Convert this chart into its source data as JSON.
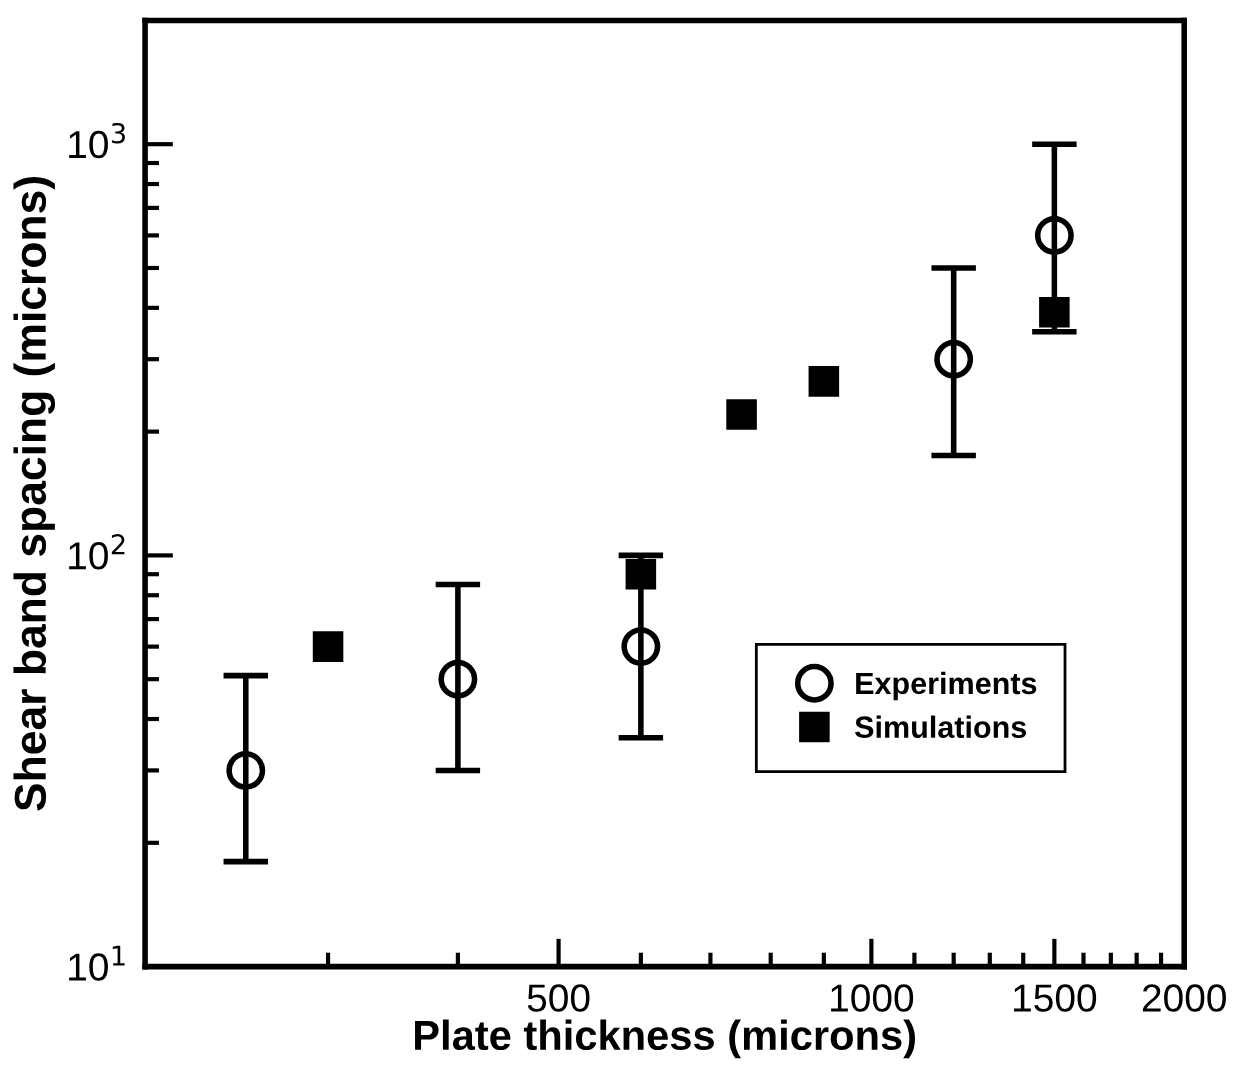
{
  "chart_data": {
    "type": "scatter",
    "xlabel": "Plate thickness (microns)",
    "ylabel": "Shear band spacing (microns)",
    "log": "xy",
    "grid": false,
    "legend": "bottom right",
    "xlim": [
      200,
      2000
    ],
    "ylim": [
      10,
      2000
    ],
    "xticks": [
      {
        "value": 300,
        "label": null
      },
      {
        "value": 400,
        "label": null
      },
      500,
      {
        "value": 600,
        "label": null
      },
      {
        "value": 700,
        "label": null
      },
      {
        "value": 800,
        "label": null
      },
      {
        "value": 900,
        "label": null
      },
      1000,
      {
        "value": 1100,
        "label": null
      },
      {
        "value": 1200,
        "label": null
      },
      {
        "value": 1300,
        "label": null
      },
      {
        "value": 1400,
        "label": null
      },
      1500,
      {
        "value": 1600,
        "label": null
      },
      {
        "value": 1700,
        "label": null
      },
      {
        "value": 1800,
        "label": null
      },
      {
        "value": 1900,
        "label": null
      },
      2000
    ],
    "yticks": [
      {
        "value": 10,
        "label": "10$^{1}$"
      },
      {
        "value": 20,
        "label": null
      },
      {
        "value": 30,
        "label": null
      },
      {
        "value": 40,
        "label": null
      },
      {
        "value": 50,
        "label": null
      },
      {
        "value": 60,
        "label": null
      },
      {
        "value": 70,
        "label": null
      },
      {
        "value": 80,
        "label": null
      },
      {
        "value": 90,
        "label": null
      },
      {
        "value": 100,
        "label": "10$^{2}$"
      },
      {
        "value": 200,
        "label": null
      },
      {
        "value": 300,
        "label": null
      },
      {
        "value": 400,
        "label": null
      },
      {
        "value": 500,
        "label": null
      },
      {
        "value": 600,
        "label": null
      },
      {
        "value": 700,
        "label": null
      },
      {
        "value": 800,
        "label": null
      },
      {
        "value": 900,
        "label": null
      },
      {
        "value": 1000,
        "label": "10$^{3}$"
      }
    ],
    "series": [
      {
        "name": "Experiments",
        "color": "#000000",
        "marker": "circle",
        "x": [
          250,
          400,
          600,
          1200,
          1500
        ],
        "values": [
          30,
          50,
          60,
          300,
          600
        ],
        "errors": [
          [
            18,
            51
          ],
          [
            30,
            85
          ],
          [
            36,
            100
          ],
          [
            175,
            500
          ],
          [
            350,
            1000
          ]
        ]
      },
      {
        "name": "Simulations",
        "color": "#000000",
        "marker": "square",
        "x": [
          300,
          600,
          750,
          900,
          1500
        ],
        "values": [
          60,
          90,
          220,
          265,
          390
        ]
      }
    ]
  }
}
